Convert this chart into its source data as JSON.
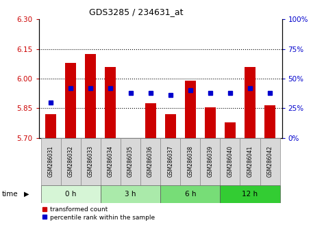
{
  "title": "GDS3285 / 234631_at",
  "samples": [
    "GSM286031",
    "GSM286032",
    "GSM286033",
    "GSM286034",
    "GSM286035",
    "GSM286036",
    "GSM286037",
    "GSM286038",
    "GSM286039",
    "GSM286040",
    "GSM286041",
    "GSM286042"
  ],
  "transformed_count": [
    5.82,
    6.08,
    6.125,
    6.06,
    5.7,
    5.875,
    5.82,
    5.99,
    5.855,
    5.78,
    6.06,
    5.865
  ],
  "percentile_rank": [
    30,
    42,
    42,
    42,
    38,
    38,
    36,
    40,
    38,
    38,
    42,
    38
  ],
  "ylim_left": [
    5.7,
    6.3
  ],
  "ylim_right": [
    0,
    100
  ],
  "yticks_left": [
    5.7,
    5.85,
    6.0,
    6.15,
    6.3
  ],
  "yticks_right": [
    0,
    25,
    50,
    75,
    100
  ],
  "groups": [
    {
      "label": "0 h",
      "indices": [
        0,
        1,
        2
      ],
      "color": "#d6f5d6"
    },
    {
      "label": "3 h",
      "indices": [
        3,
        4,
        5
      ],
      "color": "#aaeaaa"
    },
    {
      "label": "6 h",
      "indices": [
        6,
        7,
        8
      ],
      "color": "#77dd77"
    },
    {
      "label": "12 h",
      "indices": [
        9,
        10,
        11
      ],
      "color": "#33cc33"
    }
  ],
  "bar_color": "#cc0000",
  "dot_color": "#0000cc",
  "bar_bottom": 5.7,
  "tick_color_left": "#cc0000",
  "tick_color_right": "#0000cc",
  "sample_box_color": "#d8d8d8",
  "time_label": "time",
  "legend_items": [
    "transformed count",
    "percentile rank within the sample"
  ]
}
